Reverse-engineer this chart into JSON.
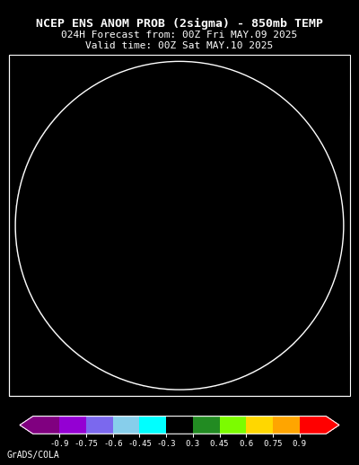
{
  "title_line1": "NCEP ENS ANOM PROB (2sigma) - 850mb TEMP",
  "title_line2": "024H Forecast from: 00Z Fri MAY.09 2025",
  "title_line3": "Valid time: 00Z Sat MAY.10 2025",
  "footer_text": "GrADS/COLA",
  "background_color": "#000000",
  "title_color": "#FFFFFF",
  "title_fontsize": 9.5,
  "subtitle_fontsize": 8.0,
  "footer_fontsize": 7.0,
  "fig_width": 4.0,
  "fig_height": 5.18,
  "cmap_colors": [
    "#800080",
    "#9400D3",
    "#7B68EE",
    "#87CEEB",
    "#00FFFF",
    "#000000",
    "#228B22",
    "#7CFC00",
    "#FFD700",
    "#FFA500",
    "#FF0000"
  ],
  "cmap_bounds": [
    -1.05,
    -0.9,
    -0.75,
    -0.6,
    -0.45,
    -0.3,
    0.3,
    0.45,
    0.6,
    0.75,
    0.9,
    1.05
  ],
  "cbar_ticks": [
    -0.9,
    -0.75,
    -0.6,
    -0.45,
    -0.3,
    0.3,
    0.45,
    0.6,
    0.75,
    0.9
  ],
  "cbar_ticklabels": [
    "-0.9",
    "-0.75",
    "-0.6",
    "-0.45",
    "-0.3",
    "0.3",
    "0.45",
    "0.6",
    "0.75",
    "0.9"
  ]
}
